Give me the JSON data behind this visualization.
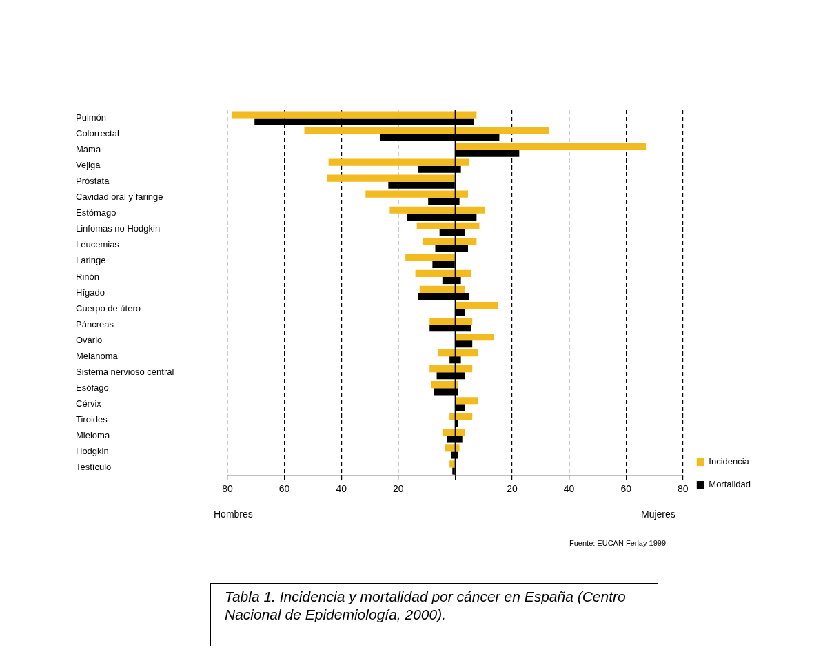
{
  "chart_data": {
    "type": "bar",
    "orientation": "horizontal",
    "categories": [
      "Pulmón",
      "Colorrectal",
      "Mama",
      "Vejiga",
      "Próstata",
      "Cavidad oral y faringe",
      "Estómago",
      "Linfomas no Hodgkin",
      "Leucemias",
      "Laringe",
      "Riñón",
      "Hígado",
      "Cuerpo de útero",
      "Páncreas",
      "Ovario",
      "Melanoma",
      "Sistema nervioso central",
      "Esófago",
      "Cérvix",
      "Tiroides",
      "Mieloma",
      "Hodgkin",
      "Testículo"
    ],
    "series": [
      {
        "name": "Incidencia",
        "color": "#f2bb1f",
        "base": [
          -78.5,
          -53,
          0,
          -44.5,
          -45,
          -31.5,
          -23,
          -13.5,
          -11.5,
          -17.5,
          -14,
          -12.5,
          0,
          -9,
          0,
          -6,
          -9,
          -8.5,
          0,
          -2,
          -4.5,
          -3.5,
          -2
        ],
        "values": [
          86,
          86,
          67,
          49.5,
          45,
          36,
          33.5,
          22,
          19,
          17.5,
          19.5,
          16,
          15,
          15,
          13.5,
          14,
          15,
          9.5,
          8,
          8,
          8,
          5,
          2
        ]
      },
      {
        "name": "Mortalidad",
        "color": "#000000",
        "base": [
          -70.5,
          -26.5,
          0,
          -13,
          -23.5,
          -9.5,
          -17,
          -5.5,
          -7,
          -8,
          -4.5,
          -13,
          0,
          -9,
          0,
          -2,
          -6.5,
          -7.5,
          0,
          0,
          -3,
          -1.5,
          -1
        ],
        "values": [
          77,
          42,
          22.5,
          15,
          23.5,
          11,
          24.5,
          9,
          11.5,
          8,
          6.5,
          18,
          3.5,
          14.5,
          6,
          4,
          10,
          8.5,
          3.5,
          1,
          5.5,
          2.5,
          1
        ]
      }
    ],
    "xlim": [
      -80,
      80
    ],
    "xticks": [
      {
        "value": -80,
        "label": "80"
      },
      {
        "value": -60,
        "label": "60"
      },
      {
        "value": -40,
        "label": "40"
      },
      {
        "value": -20,
        "label": "20"
      },
      {
        "value": 0,
        "label": null
      },
      20,
      40,
      60,
      80
    ],
    "grid": "x",
    "legend": "right",
    "ref_lines": [
      {
        "axis": "x",
        "value": 0,
        "color": "#000000",
        "line_style": "solid"
      }
    ],
    "annotations": [
      "Hombres",
      "Mujeres",
      "Fuente: EUCAN Ferlay 1999.",
      "Tabla 1. Incidencia y mortalidad por cáncer  en España (Centro Nacional de Epidemiología, 2000)."
    ]
  }
}
